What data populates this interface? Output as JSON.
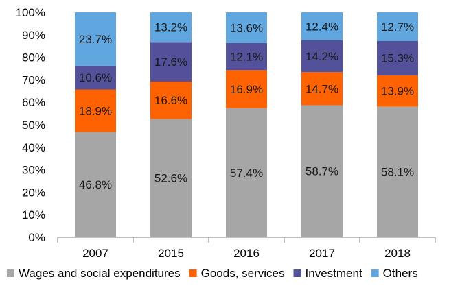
{
  "chart_data": {
    "type": "bar",
    "stacked": true,
    "categories": [
      "2007",
      "2015",
      "2016",
      "2017",
      "2018"
    ],
    "series": [
      {
        "name": "Wages and social expenditures",
        "color": "#A6A6A6",
        "values": [
          46.8,
          52.6,
          57.4,
          58.7,
          58.1
        ]
      },
      {
        "name": "Goods, services",
        "color": "#FF6200",
        "values": [
          18.9,
          16.6,
          16.9,
          14.7,
          13.9
        ]
      },
      {
        "name": "Investment",
        "color": "#525199",
        "values": [
          10.6,
          17.6,
          12.1,
          14.2,
          15.3
        ]
      },
      {
        "name": "Others",
        "color": "#60A7E0",
        "values": [
          23.7,
          13.2,
          13.6,
          12.4,
          12.7
        ]
      }
    ],
    "data_labels": [
      [
        "46.8%",
        "52.6%",
        "57.4%",
        "58.7%",
        "58.1%"
      ],
      [
        "18.9%",
        "16.6%",
        "16.9%",
        "14.7%",
        "13.9%"
      ],
      [
        "10.6%",
        "17.6%",
        "12.1%",
        "14.2%",
        "15.3%"
      ],
      [
        "23.7%",
        "13.2%",
        "13.6%",
        "12.4%",
        "12.7%"
      ]
    ],
    "y_ticks": [
      "0%",
      "10%",
      "20%",
      "30%",
      "40%",
      "50%",
      "60%",
      "70%",
      "80%",
      "90%",
      "100%"
    ],
    "ylim": [
      0,
      100
    ],
    "grid": false,
    "legend_position": "bottom"
  }
}
